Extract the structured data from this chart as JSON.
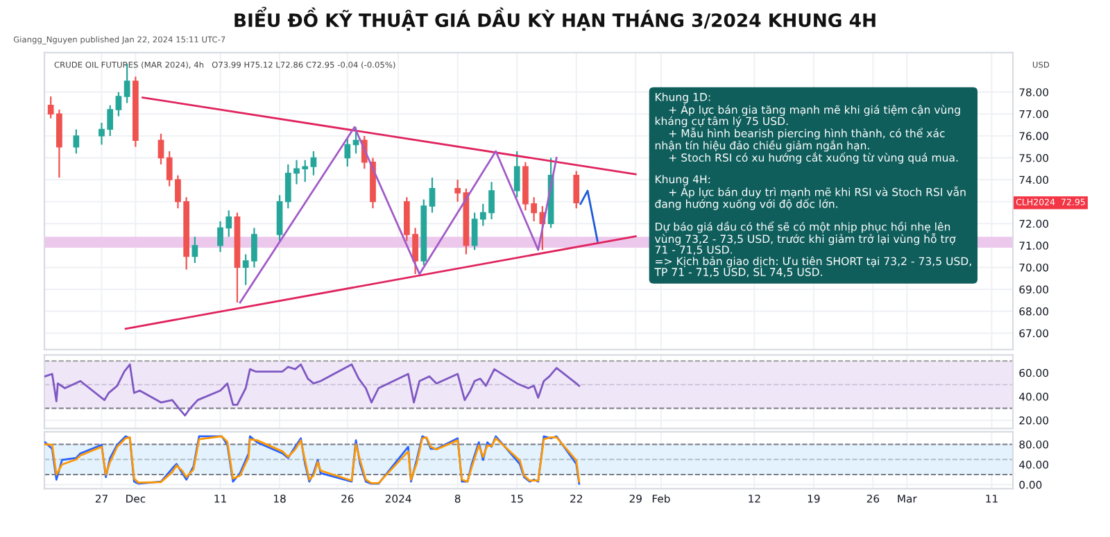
{
  "chart_data": [
    {
      "type": "candlestick",
      "title": "BIỂU ĐỒ KỸ THUẬT GIÁ DẦU KỲ HẠN THÁNG 3/2024 KHUNG 4H",
      "xlim": [
        "2023-11-20T06:00",
        "2024-03-13T12:00"
      ],
      "xticks": [
        {
          "value": "2023-11-27",
          "label": null
        },
        {
          "value": "2023-12-01",
          "label": null
        },
        {
          "value": "2023-12-11",
          "label": null
        },
        {
          "value": "2023-12-18",
          "label": null
        },
        {
          "value": "2023-12-26",
          "label": null
        },
        {
          "value": "2024-01-01",
          "label": null
        },
        {
          "value": "2024-01-08",
          "label": null
        },
        {
          "value": "2024-01-15",
          "label": null
        },
        {
          "value": "2024-01-22",
          "label": null
        },
        {
          "value": "2024-01-29",
          "label": null
        },
        {
          "value": "2024-02-01",
          "label": null
        },
        {
          "value": "2024-02-12",
          "label": null
        },
        {
          "value": "2024-02-19",
          "label": null
        },
        {
          "value": "2024-02-26",
          "label": null
        },
        {
          "value": "2024-03-01",
          "label": null
        },
        {
          "value": "2024-03-11",
          "label": null
        }
      ],
      "ylim": [
        66.25,
        79.8
      ],
      "yticks": [
        {
          "value": 67,
          "label": "67.00"
        },
        {
          "value": 68,
          "label": "68.00"
        },
        {
          "value": 69,
          "label": "69.00"
        },
        {
          "value": 70,
          "label": "70.00"
        },
        {
          "value": 71,
          "label": "71.00"
        },
        {
          "value": 72,
          "label": "72.00"
        },
        {
          "value": 73,
          "label": null
        },
        {
          "value": 74,
          "label": "74.00"
        },
        {
          "value": 75,
          "label": "75.00"
        },
        {
          "value": 76,
          "label": "76.00"
        },
        {
          "value": 77,
          "label": "77.00"
        },
        {
          "value": 78,
          "label": "78.00"
        }
      ],
      "tick_labels": "y",
      "grid": true,
      "bands": [
        {
          "axis": "y",
          "from": 70.9,
          "to": 71.4,
          "color": "#ecc8ec"
        }
      ],
      "annotations": [
        "Giangg_Nguyen published Jan 22, 2024 15:11 UTC-7",
        "CRUDE OIL FUTURES (MAR 2024), 4h   O73.99 H75.12 L72.86 C72.95 -0.04 (-0.05%)",
        "Khung 1D:\n    + Áp lực bán gia tăng mạnh mẽ khi giá tiệm cận vùng\nkháng cự tâm lý 75 USD.\n    + Mẫu hình bearish piercing hình thành, có thể xác\nnhận tín hiệu đảo chiều giảm ngắn hạn.\n    + Stoch RSI có xu hướng cắt xuống từ vùng quá mua.\n\nKhung 4H:\n    + Áp lực bán duy trì mạnh mẽ khi RSI và Stoch RSI vẫn\nđang hướng xuống với độ dốc lớn.\n\nDự báo giá dầu có thể sẽ có một nhịp phục hồi nhẹ lên\nvùng 73,2 - 73,5 USD, trước khi giảm trở lại vùng hỗ trợ\n71 - 71,5 USD.\n=> Kịch bản giao dịch: Ưu tiên SHORT tại 73,2 - 73,5 USD,\nTP 71 - 71,5 USD, SL 74,5 USD.",
        "USD",
        "CLH2024  72.95"
      ],
      "series": [
        {
          "type": "candlestick",
          "colors": [
            "#ef5350",
            "#ef5350",
            "#26a69a",
            "#26a69a",
            "#26a69a",
            "#26a69a",
            "#26a69a",
            "#ef5350",
            "#ef5350",
            "#ef5350",
            "#ef5350",
            "#ef5350",
            "#26a69a",
            "#26a69a",
            "#26a69a",
            "#ef5350",
            "#26a69a",
            "#26a69a",
            "#26a69a",
            "#26a69a",
            "#26a69a",
            "#26a69a",
            "#26a69a",
            "#26a69a",
            "#26a69a",
            "#ef5350",
            "#ef5350",
            "#ef5350",
            "#ef5350",
            "#26a69a",
            "#26a69a",
            "#ef5350",
            "#ef5350",
            "#26a69a",
            "#26a69a",
            "#26a69a",
            "#26a69a",
            "#ef5350",
            "#ef5350",
            "#ef5350",
            "#26a69a",
            "#ef5350"
          ],
          "x": [
            "2023-11-21",
            "2023-11-22",
            "2023-11-24",
            "2023-11-27",
            "2023-11-28",
            "2023-11-29",
            "2023-11-30",
            "2023-12-01",
            "2023-12-04",
            "2023-12-05",
            "2023-12-06",
            "2023-12-07",
            "2023-12-08",
            "2023-12-11",
            "2023-12-12",
            "2023-12-13",
            "2023-12-14",
            "2023-12-15",
            "2023-12-18",
            "2023-12-19",
            "2023-12-20",
            "2023-12-21",
            "2023-12-22",
            "2023-12-26",
            "2023-12-27",
            "2023-12-28",
            "2023-12-29",
            "2024-01-02",
            "2024-01-03",
            "2024-01-04",
            "2024-01-05",
            "2024-01-08",
            "2024-01-09",
            "2024-01-10",
            "2024-01-11",
            "2024-01-12",
            "2024-01-15",
            "2024-01-16",
            "2024-01-17",
            "2024-01-18",
            "2024-01-19",
            "2024-01-22"
          ],
          "ohlc": [
            [
              77.4,
              77.8,
              76.8,
              77.0
            ],
            [
              77.0,
              77.2,
              74.1,
              75.5
            ],
            [
              75.5,
              76.3,
              75.2,
              76.0
            ],
            [
              76.0,
              76.6,
              75.6,
              76.3
            ],
            [
              76.3,
              77.4,
              76.0,
              77.2
            ],
            [
              77.2,
              78.0,
              76.9,
              77.8
            ],
            [
              77.8,
              79.3,
              77.5,
              78.5
            ],
            [
              78.5,
              78.7,
              75.5,
              75.8
            ],
            [
              75.8,
              76.1,
              74.7,
              75.0
            ],
            [
              75.0,
              75.3,
              73.7,
              74.0
            ],
            [
              74.0,
              74.2,
              72.7,
              73.0
            ],
            [
              73.0,
              73.2,
              69.9,
              70.5
            ],
            [
              70.5,
              71.4,
              70.2,
              71.0
            ],
            [
              71.0,
              72.1,
              70.7,
              71.8
            ],
            [
              71.8,
              72.6,
              71.4,
              72.3
            ],
            [
              72.3,
              72.5,
              68.4,
              70.0
            ],
            [
              70.0,
              70.6,
              69.2,
              70.3
            ],
            [
              70.3,
              71.8,
              70.0,
              71.5
            ],
            [
              71.5,
              73.3,
              71.2,
              73.0
            ],
            [
              73.0,
              74.7,
              72.7,
              74.3
            ],
            [
              74.3,
              74.9,
              73.8,
              74.5
            ],
            [
              74.5,
              74.9,
              73.9,
              74.6
            ],
            [
              74.6,
              75.3,
              74.2,
              75.0
            ],
            [
              75.0,
              75.9,
              74.6,
              75.6
            ],
            [
              75.6,
              76.4,
              75.2,
              75.8
            ],
            [
              75.8,
              76.0,
              74.5,
              74.8
            ],
            [
              74.8,
              75.0,
              72.7,
              73.0
            ],
            [
              73.0,
              73.2,
              71.2,
              71.5
            ],
            [
              71.5,
              71.8,
              69.7,
              70.3
            ],
            [
              70.3,
              73.1,
              70.1,
              72.8
            ],
            [
              72.8,
              74.1,
              72.5,
              73.6
            ],
            [
              73.6,
              74.0,
              73.0,
              73.4
            ],
            [
              73.4,
              73.6,
              70.6,
              71.0
            ],
            [
              71.0,
              72.5,
              70.8,
              72.2
            ],
            [
              72.2,
              72.9,
              71.9,
              72.5
            ],
            [
              72.5,
              73.9,
              72.2,
              73.5
            ],
            [
              73.5,
              75.3,
              73.2,
              74.6
            ],
            [
              74.6,
              74.8,
              72.6,
              72.9
            ],
            [
              72.9,
              73.2,
              72.1,
              72.5
            ],
            [
              72.5,
              72.8,
              70.8,
              72.0
            ],
            [
              72.0,
              75.0,
              71.8,
              74.2
            ],
            [
              74.2,
              74.4,
              72.7,
              72.95
            ]
          ]
        },
        {
          "type": "line",
          "color": "#e0245e",
          "x": [
            "2023-12-01T20:00",
            "2024-01-29T00:00"
          ],
          "values": [
            77.75,
            74.25
          ]
        },
        {
          "type": "line",
          "color": "#e0245e",
          "x": [
            "2023-11-29T20:00",
            "2024-01-29T00:00"
          ],
          "values": [
            67.2,
            71.42
          ]
        },
        {
          "type": "line",
          "color": "#a25bc7",
          "x": [
            "2023-12-13T08:00",
            "2023-12-26T20:00",
            "2024-01-03T12:00",
            "2024-01-12T12:00",
            "2024-01-17T12:00",
            "2024-01-19T16:00"
          ],
          "values": [
            68.4,
            76.4,
            69.7,
            75.3,
            70.8,
            75.0
          ]
        },
        {
          "type": "line",
          "color": "#1e5bd8",
          "x": [
            "2024-01-22T12:00",
            "2024-01-23T08:00",
            "2024-01-24T12:00"
          ],
          "values": [
            72.9,
            73.5,
            71.2
          ]
        }
      ]
    },
    {
      "type": "line",
      "xlim": [
        "2023-11-20T06:00",
        "2024-03-13T12:00"
      ],
      "xticks": [
        {
          "value": "2023-11-27",
          "label": null
        },
        {
          "value": "2023-12-01",
          "label": null
        },
        {
          "value": "2023-12-11",
          "label": null
        },
        {
          "value": "2023-12-18",
          "label": null
        },
        {
          "value": "2023-12-26",
          "label": null
        },
        {
          "value": "2024-01-01",
          "label": null
        },
        {
          "value": "2024-01-08",
          "label": null
        },
        {
          "value": "2024-01-15",
          "label": null
        },
        {
          "value": "2024-01-22",
          "label": null
        },
        {
          "value": "2024-01-29",
          "label": null
        },
        {
          "value": "2024-02-01",
          "label": null
        },
        {
          "value": "2024-02-12",
          "label": null
        },
        {
          "value": "2024-02-19",
          "label": null
        },
        {
          "value": "2024-02-26",
          "label": null
        },
        {
          "value": "2024-03-01",
          "label": null
        },
        {
          "value": "2024-03-11",
          "label": null
        }
      ],
      "ylim": [
        13,
        75
      ],
      "yticks": [
        {
          "value": 20,
          "label": "20.00"
        },
        {
          "value": 40,
          "label": "40.00"
        },
        {
          "value": 60,
          "label": "60.00"
        }
      ],
      "tick_labels": "y",
      "grid": true,
      "bands": [
        {
          "axis": "y",
          "from": 30,
          "to": 70,
          "color": "#efe6f7"
        }
      ],
      "ref_lines": [
        {
          "axis": "y",
          "value": 70,
          "line_style": "dashed",
          "color": "#9e9e9e"
        },
        {
          "axis": "y",
          "value": 50,
          "line_style": "dashed",
          "color": "#c9c0d6"
        },
        {
          "axis": "y",
          "value": 30,
          "line_style": "dashed",
          "color": "#787b86"
        }
      ],
      "series": [
        {
          "color": "#7e57c2",
          "x": [
            "2023-11-20T08:00",
            "2023-11-21T04:00",
            "2023-11-21T16:00",
            "2023-11-21T20:00",
            "2023-11-22T16:00",
            "2023-11-24T12:00",
            "2023-11-27T08:00",
            "2023-11-27T20:00",
            "2023-11-28T20:00",
            "2023-11-29T16:00",
            "2023-11-30T08:00",
            "2023-11-30T20:00",
            "2023-12-01T12:00",
            "2023-12-04T00:00",
            "2023-12-05T08:00",
            "2023-12-06T00:00",
            "2023-12-06T20:00",
            "2023-12-07T08:00",
            "2023-12-08T08:00",
            "2023-12-11T00:00",
            "2023-12-11T20:00",
            "2023-12-12T12:00",
            "2023-12-13T00:00",
            "2023-12-14T00:00",
            "2023-12-14T12:00",
            "2023-12-15T04:00",
            "2023-12-18T08:00",
            "2023-12-19T00:00",
            "2023-12-19T20:00",
            "2023-12-20T12:00",
            "2023-12-21T08:00",
            "2023-12-22T00:00",
            "2023-12-22T20:00",
            "2023-12-26T12:00",
            "2023-12-27T08:00",
            "2023-12-28T04:00",
            "2023-12-28T20:00",
            "2023-12-29T16:00",
            "2024-01-02T04:00",
            "2024-01-02T20:00",
            "2024-01-03T12:00",
            "2024-01-04T16:00",
            "2024-01-05T12:00",
            "2024-01-08T00:00",
            "2024-01-08T20:00",
            "2024-01-09T12:00",
            "2024-01-10T00:00",
            "2024-01-10T16:00",
            "2024-01-11T08:00",
            "2024-01-12T08:00",
            "2024-01-15T00:00",
            "2024-01-16T08:00",
            "2024-01-17T00:00",
            "2024-01-17T12:00",
            "2024-01-18T04:00",
            "2024-01-18T20:00",
            "2024-01-19T16:00",
            "2024-01-22T00:00",
            "2024-01-22T08:00"
          ],
          "values": [
            57,
            59,
            36,
            51,
            47,
            53,
            37,
            43,
            49,
            61,
            67,
            43,
            45,
            35,
            37,
            31,
            24,
            29,
            37,
            45,
            51,
            33,
            33,
            47,
            63,
            61,
            61,
            65,
            63,
            67,
            55,
            51,
            53,
            67,
            55,
            47,
            35,
            47,
            59,
            35,
            53,
            57,
            51,
            59,
            37,
            45,
            53,
            55,
            49,
            63,
            51,
            47,
            49,
            39,
            53,
            57,
            64,
            51,
            49
          ]
        }
      ]
    },
    {
      "type": "line",
      "xlim": [
        "2023-11-20T06:00",
        "2024-03-13T12:00"
      ],
      "xticks": [
        {
          "value": "2023-11-27",
          "label": "27"
        },
        {
          "value": "2023-12-01",
          "label": "Dec"
        },
        {
          "value": "2023-12-11",
          "label": "11"
        },
        {
          "value": "2023-12-18",
          "label": "18"
        },
        {
          "value": "2023-12-26",
          "label": "26"
        },
        {
          "value": "2024-01-01",
          "label": "2024"
        },
        {
          "value": "2024-01-08",
          "label": "8"
        },
        {
          "value": "2024-01-15",
          "label": "15"
        },
        {
          "value": "2024-01-22",
          "label": "22"
        },
        {
          "value": "2024-01-29",
          "label": "29"
        },
        {
          "value": "2024-02-01",
          "label": "Feb"
        },
        {
          "value": "2024-02-12",
          "label": "12"
        },
        {
          "value": "2024-02-19",
          "label": "19"
        },
        {
          "value": "2024-02-26",
          "label": "26"
        },
        {
          "value": "2024-03-01",
          "label": "Mar"
        },
        {
          "value": "2024-03-11",
          "label": "11"
        }
      ],
      "ylim": [
        -8,
        105
      ],
      "yticks": [
        {
          "value": 0,
          "label": "0.00"
        },
        {
          "value": 40,
          "label": "40.00"
        },
        {
          "value": 80,
          "label": "80.00"
        }
      ],
      "grid": true,
      "bands": [
        {
          "axis": "y",
          "from": 20,
          "to": 80,
          "color": "#e3f2fd"
        }
      ],
      "ref_lines": [
        {
          "axis": "y",
          "value": 80,
          "line_style": "dashed",
          "color": "#787b86"
        },
        {
          "axis": "y",
          "value": 50,
          "line_style": "dashed",
          "color": "#b0bec5"
        },
        {
          "axis": "y",
          "value": 20,
          "line_style": "dashed",
          "color": "#787b86"
        }
      ],
      "series": [
        {
          "color": "#2962ff",
          "x": [
            "2023-11-20T08:00",
            "2023-11-21T04:00",
            "2023-11-21T16:00",
            "2023-11-22T08:00",
            "2023-11-24T00:00",
            "2023-11-24T12:00",
            "2023-11-27T00:00",
            "2023-11-27T12:00",
            "2023-11-28T00:00",
            "2023-11-28T20:00",
            "2023-11-29T20:00",
            "2023-11-30T08:00",
            "2023-11-30T20:00",
            "2023-12-01T08:00",
            "2023-12-04T00:00",
            "2023-12-05T08:00",
            "2023-12-05T20:00",
            "2023-12-06T12:00",
            "2023-12-07T00:00",
            "2023-12-07T20:00",
            "2023-12-08T12:00",
            "2023-12-11T04:00",
            "2023-12-11T20:00",
            "2023-12-12T12:00",
            "2023-12-13T08:00",
            "2023-12-14T08:00",
            "2023-12-14T12:00",
            "2023-12-15T08:00",
            "2023-12-18T08:00",
            "2023-12-19T00:00",
            "2023-12-19T20:00",
            "2023-12-20T12:00",
            "2023-12-21T00:00",
            "2023-12-21T12:00",
            "2023-12-22T00:00",
            "2023-12-22T12:00",
            "2023-12-22T20:00",
            "2023-12-26T12:00",
            "2023-12-27T00:00",
            "2023-12-27T12:00",
            "2023-12-28T04:00",
            "2023-12-28T20:00",
            "2023-12-29T16:00",
            "2024-01-02T04:00",
            "2024-01-02T12:00",
            "2024-01-03T04:00",
            "2024-01-03T20:00",
            "2024-01-04T08:00",
            "2024-01-04T20:00",
            "2024-01-05T12:00",
            "2024-01-08T00:00",
            "2024-01-08T12:00",
            "2024-01-09T04:00",
            "2024-01-09T16:00",
            "2024-01-10T12:00",
            "2024-01-11T00:00",
            "2024-01-11T12:00",
            "2024-01-12T00:00",
            "2024-01-12T12:00",
            "2024-01-15T08:00",
            "2024-01-15T20:00",
            "2024-01-16T12:00",
            "2024-01-17T00:00",
            "2024-01-17T12:00",
            "2024-01-18T04:00",
            "2024-01-19T00:00",
            "2024-01-19T16:00",
            "2024-01-22T00:00",
            "2024-01-22T08:00"
          ],
          "values": [
            84,
            71,
            10,
            49,
            53,
            62,
            79,
            15,
            53,
            79,
            96,
            92,
            6,
            2,
            6,
            32,
            41,
            23,
            10,
            36,
            96,
            96,
            79,
            6,
            23,
            62,
            96,
            84,
            62,
            53,
            75,
            92,
            41,
            6,
            23,
            49,
            23,
            6,
            88,
            41,
            6,
            2,
            2,
            75,
            6,
            49,
            96,
            92,
            71,
            71,
            92,
            6,
            6,
            41,
            84,
            49,
            84,
            75,
            96,
            41,
            15,
            6,
            10,
            6,
            96,
            92,
            96,
            41,
            2
          ]
        },
        {
          "color": "#ff9800",
          "x": [
            "2023-11-20T08:00",
            "2023-11-21T04:00",
            "2023-11-21T16:00",
            "2023-11-22T08:00",
            "2023-11-24T00:00",
            "2023-11-24T12:00",
            "2023-11-27T00:00",
            "2023-11-27T12:00",
            "2023-11-28T00:00",
            "2023-11-28T20:00",
            "2023-11-29T20:00",
            "2023-11-30T08:00",
            "2023-11-30T20:00",
            "2023-12-01T08:00",
            "2023-12-04T00:00",
            "2023-12-05T08:00",
            "2023-12-05T20:00",
            "2023-12-06T12:00",
            "2023-12-07T00:00",
            "2023-12-07T20:00",
            "2023-12-08T12:00",
            "2023-12-11T04:00",
            "2023-12-11T20:00",
            "2023-12-12T12:00",
            "2023-12-13T08:00",
            "2023-12-14T08:00",
            "2023-12-14T12:00",
            "2023-12-15T08:00",
            "2023-12-18T08:00",
            "2023-12-19T00:00",
            "2023-12-19T20:00",
            "2023-12-20T12:00",
            "2023-12-21T00:00",
            "2023-12-21T12:00",
            "2023-12-22T00:00",
            "2023-12-22T12:00",
            "2023-12-22T20:00",
            "2023-12-26T12:00",
            "2023-12-27T00:00",
            "2023-12-27T12:00",
            "2023-12-28T04:00",
            "2023-12-28T20:00",
            "2023-12-29T16:00",
            "2024-01-02T04:00",
            "2024-01-02T12:00",
            "2024-01-03T04:00",
            "2024-01-03T20:00",
            "2024-01-04T08:00",
            "2024-01-04T20:00",
            "2024-01-05T12:00",
            "2024-01-08T00:00",
            "2024-01-08T12:00",
            "2024-01-09T04:00",
            "2024-01-09T16:00",
            "2024-01-10T12:00",
            "2024-01-11T00:00",
            "2024-01-11T12:00",
            "2024-01-12T00:00",
            "2024-01-12T12:00",
            "2024-01-15T08:00",
            "2024-01-15T20:00",
            "2024-01-16T12:00",
            "2024-01-17T00:00",
            "2024-01-17T12:00",
            "2024-01-18T04:00",
            "2024-01-19T00:00",
            "2024-01-19T16:00",
            "2024-01-22T00:00",
            "2024-01-22T08:00"
          ],
          "values": [
            80,
            79,
            20,
            40,
            50,
            58,
            75,
            20,
            45,
            75,
            92,
            94,
            12,
            4,
            5,
            25,
            38,
            28,
            15,
            30,
            90,
            96,
            85,
            12,
            18,
            55,
            90,
            88,
            66,
            55,
            70,
            88,
            48,
            10,
            18,
            45,
            28,
            8,
            80,
            48,
            10,
            3,
            3,
            66,
            10,
            42,
            92,
            94,
            75,
            70,
            88,
            10,
            6,
            35,
            78,
            55,
            78,
            76,
            92,
            48,
            18,
            8,
            8,
            8,
            90,
            94,
            94,
            48,
            6
          ]
        }
      ]
    }
  ]
}
